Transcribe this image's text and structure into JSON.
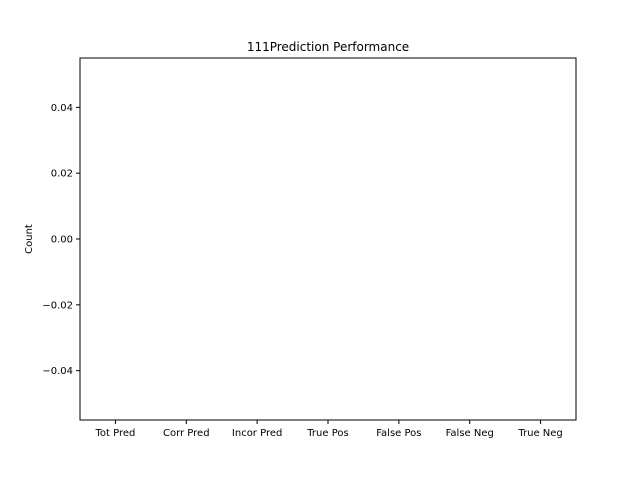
{
  "chart_data": {
    "type": "bar",
    "title": "111Prediction Performance",
    "xlabel": "",
    "ylabel": "Count",
    "categories": [
      "Tot Pred",
      "Corr Pred",
      "Incor Pred",
      "True Pos",
      "False Pos",
      "False Neg",
      "True Neg"
    ],
    "values": [
      0,
      0,
      0,
      0,
      0,
      0,
      0
    ],
    "ylim": [
      -0.055,
      0.055
    ],
    "yticks": [
      -0.04,
      -0.02,
      0.0,
      0.02,
      0.04
    ],
    "ytick_labels": [
      "−0.04",
      "−0.02",
      "0.00",
      "0.02",
      "0.04"
    ],
    "grid": false,
    "colors": {
      "bar": "#1f77b4",
      "axis": "#000000",
      "background": "#ffffff"
    }
  }
}
